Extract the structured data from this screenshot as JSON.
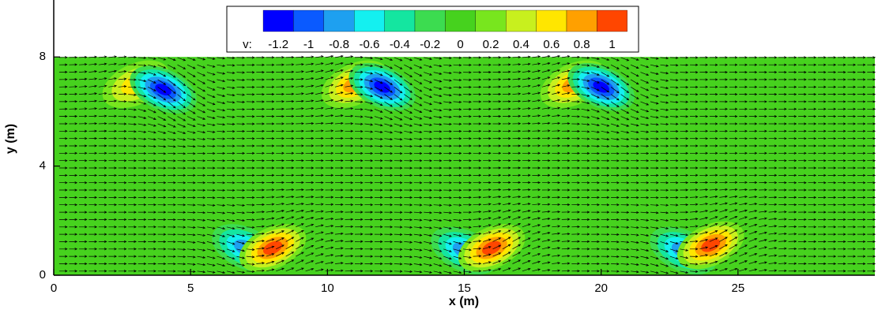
{
  "chart_data": {
    "type": "contour",
    "x_label": "x (m)",
    "y_label": "y (m)",
    "xlim": [
      0,
      30
    ],
    "ylim": [
      0,
      10
    ],
    "xticks": [
      0,
      5,
      10,
      15,
      20,
      25
    ],
    "yticks": [
      0,
      4,
      8
    ],
    "domain": {
      "x": [
        0,
        30
      ],
      "y": [
        0,
        8
      ]
    },
    "colorbar": {
      "label": "v:",
      "levels": [
        -1.2,
        -1,
        -0.8,
        -0.6,
        -0.4,
        -0.2,
        0,
        0.2,
        0.4,
        0.6,
        0.8,
        1
      ],
      "colors": [
        "#0000ff",
        "#0a5aff",
        "#1ea0f0",
        "#14f0f0",
        "#14e6a0",
        "#3cdc50",
        "#46d21e",
        "#78e61e",
        "#c8f01e",
        "#ffe600",
        "#ffa000",
        "#ff4600"
      ]
    },
    "extrema": [
      {
        "x": 3,
        "y": 7.0,
        "v": 0.6
      },
      {
        "x": 4,
        "y": 6.8,
        "v": -1.2
      },
      {
        "x": 7,
        "y": 1.0,
        "v": -0.8
      },
      {
        "x": 8,
        "y": 1.0,
        "v": 1
      },
      {
        "x": 11,
        "y": 7.0,
        "v": 0.8
      },
      {
        "x": 12,
        "y": 6.9,
        "v": -1.2
      },
      {
        "x": 15,
        "y": 0.9,
        "v": -0.8
      },
      {
        "x": 16,
        "y": 1.0,
        "v": 1
      },
      {
        "x": 19,
        "y": 7.0,
        "v": 0.8
      },
      {
        "x": 20,
        "y": 6.9,
        "v": -1.2
      },
      {
        "x": 23,
        "y": 0.9,
        "v": -0.8
      },
      {
        "x": 24,
        "y": 1.1,
        "v": 1
      }
    ]
  }
}
